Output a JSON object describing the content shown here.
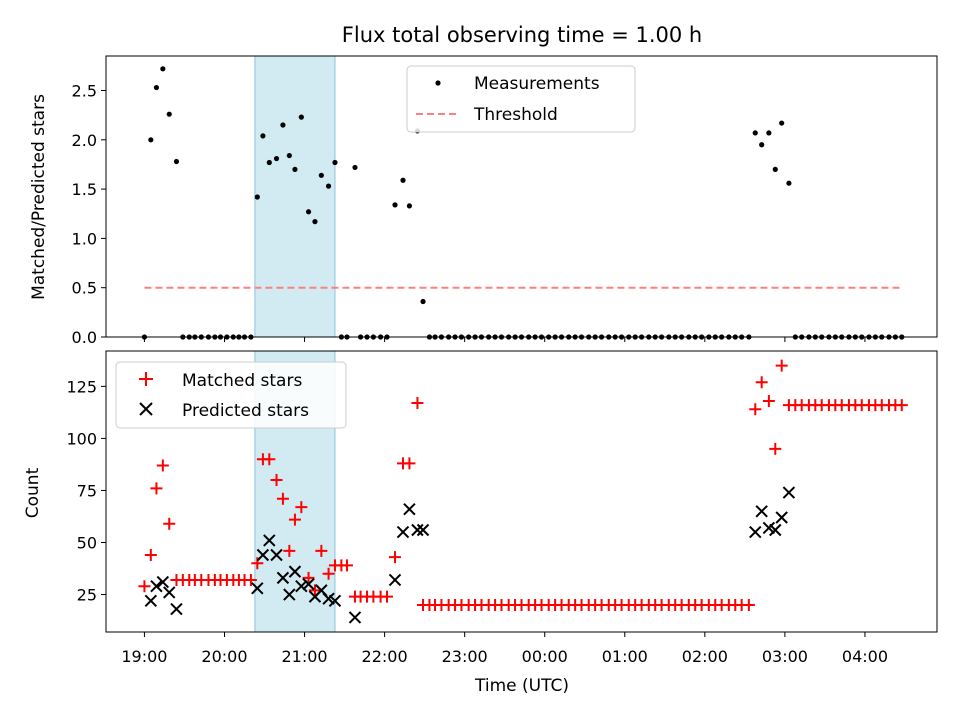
{
  "chart_data": [
    {
      "type": "scatter",
      "title": "Flux total observing time = 1.00 h",
      "ylabel": "Matched/Predicted stars",
      "xlabel": "",
      "x_unit": "hours since 19:00 UTC",
      "ylim": [
        0,
        2.85
      ],
      "xlim": [
        -0.48,
        9.9
      ],
      "yticks": [
        "0.0",
        "0.5",
        "1.0",
        "1.5",
        "2.0",
        "2.5"
      ],
      "ytick_values": [
        0,
        0.5,
        1.0,
        1.5,
        2.0,
        2.5
      ],
      "shaded_interval": [
        1.38,
        2.38
      ],
      "shade_color": "#add8e6",
      "legend_position": "upper center",
      "series": [
        {
          "name": "Measurements",
          "marker": "dot",
          "color": "#000000",
          "x": [
            0,
            0.08,
            0.15,
            0.23,
            0.31,
            0.4,
            0.48,
            0.56,
            0.63,
            0.71,
            0.8,
            0.88,
            0.95,
            1.03,
            1.11,
            1.18,
            1.25,
            1.33,
            1.41,
            1.48,
            1.56,
            1.65,
            1.73,
            1.81,
            1.88,
            1.96,
            2.05,
            2.13,
            2.21,
            2.3,
            2.38,
            2.46,
            2.53,
            2.63,
            2.7,
            2.78,
            2.86,
            2.95,
            3.03,
            3.13,
            3.23,
            3.31,
            3.41,
            3.48,
            3.56,
            3.63,
            3.71,
            3.8,
            3.88,
            3.96,
            4.05,
            4.13,
            4.21,
            4.3,
            4.38,
            4.46,
            4.55,
            4.63,
            4.71,
            4.8,
            4.88,
            4.96,
            5.05,
            5.13,
            5.21,
            5.3,
            5.38,
            5.46,
            5.55,
            5.63,
            5.71,
            5.8,
            5.88,
            5.96,
            6.05,
            6.13,
            6.21,
            6.3,
            6.38,
            6.46,
            6.55,
            6.63,
            6.71,
            6.8,
            6.88,
            6.96,
            7.05,
            7.13,
            7.21,
            7.3,
            7.38,
            7.46,
            7.55,
            7.63,
            7.71,
            7.8,
            7.88,
            7.96,
            8.05,
            8.13,
            8.21,
            8.3,
            8.38,
            8.46,
            8.55,
            8.63,
            8.71,
            8.8,
            8.88,
            8.96,
            9.05,
            9.13,
            9.21,
            9.3,
            9.38,
            9.46
          ],
          "y": [
            0,
            2.0,
            2.53,
            2.72,
            2.26,
            1.78,
            0,
            0,
            0,
            0,
            0,
            0,
            0,
            0,
            0,
            0,
            0,
            0,
            1.42,
            2.04,
            1.77,
            1.81,
            2.15,
            1.84,
            1.7,
            2.23,
            1.27,
            1.17,
            1.64,
            1.53,
            1.77,
            0,
            0,
            1.72,
            0,
            0,
            0,
            0,
            0,
            1.34,
            1.59,
            1.33,
            2.09,
            0.36,
            0,
            0,
            0,
            0,
            0,
            0,
            0,
            0,
            0,
            0,
            0,
            0,
            0,
            0,
            0,
            0,
            0,
            0,
            0,
            0,
            0,
            0,
            0,
            0,
            0,
            0,
            0,
            0,
            0,
            0,
            0,
            0,
            0,
            0,
            0,
            0,
            0,
            0,
            0,
            0,
            0,
            0,
            0,
            0,
            0,
            0,
            0,
            0,
            0,
            2.07,
            1.95,
            2.07,
            1.7,
            2.17,
            1.56,
            0,
            0,
            0,
            0,
            0,
            0,
            0,
            0,
            0,
            0,
            0,
            0,
            0,
            0,
            0,
            0,
            0
          ]
        },
        {
          "name": "Threshold",
          "marker": "dashed-line",
          "color": "#ff7f7f",
          "x": [
            0,
            9.46
          ],
          "y": [
            0.5,
            0.5
          ]
        }
      ]
    },
    {
      "type": "scatter",
      "title": "",
      "ylabel": "Count",
      "xlabel": "Time (UTC)",
      "x_unit": "hours since 19:00 UTC",
      "ylim": [
        7,
        142
      ],
      "xlim": [
        -0.48,
        9.9
      ],
      "yticks": [
        "25",
        "50",
        "75",
        "100",
        "125"
      ],
      "ytick_values": [
        25,
        50,
        75,
        100,
        125
      ],
      "xticks": [
        "19:00",
        "20:00",
        "21:00",
        "22:00",
        "23:00",
        "00:00",
        "01:00",
        "02:00",
        "03:00",
        "04:00"
      ],
      "xtick_values": [
        0,
        1,
        2,
        3,
        4,
        5,
        6,
        7,
        8,
        9
      ],
      "shaded_interval": [
        1.38,
        2.38
      ],
      "shade_color": "#add8e6",
      "legend_position": "upper left",
      "series": [
        {
          "name": "Matched stars",
          "marker": "plus",
          "color": "#ff0000",
          "x": [
            0,
            0.08,
            0.15,
            0.23,
            0.31,
            0.4,
            0.48,
            0.56,
            0.63,
            0.71,
            0.8,
            0.88,
            0.95,
            1.03,
            1.11,
            1.18,
            1.25,
            1.33,
            1.41,
            1.48,
            1.56,
            1.65,
            1.73,
            1.81,
            1.88,
            1.96,
            2.05,
            2.13,
            2.21,
            2.3,
            2.38,
            2.46,
            2.53,
            2.63,
            2.7,
            2.78,
            2.86,
            2.95,
            3.03,
            3.13,
            3.23,
            3.31,
            3.41,
            3.48,
            3.56,
            3.63,
            3.71,
            3.8,
            3.88,
            3.96,
            4.05,
            4.13,
            4.21,
            4.3,
            4.38,
            4.46,
            4.55,
            4.63,
            4.71,
            4.8,
            4.88,
            4.96,
            5.05,
            5.13,
            5.21,
            5.3,
            5.38,
            5.46,
            5.55,
            5.63,
            5.71,
            5.8,
            5.88,
            5.96,
            6.05,
            6.13,
            6.21,
            6.3,
            6.38,
            6.46,
            6.55,
            6.63,
            6.71,
            6.8,
            6.88,
            6.96,
            7.05,
            7.13,
            7.21,
            7.3,
            7.38,
            7.46,
            7.55,
            7.63,
            7.71,
            7.8,
            7.88,
            7.96,
            8.05,
            8.13,
            8.21,
            8.3,
            8.38,
            8.46,
            8.55,
            8.63,
            8.71,
            8.8,
            8.88,
            8.96,
            9.05,
            9.13,
            9.21,
            9.3,
            9.38,
            9.46
          ],
          "y": [
            29,
            44,
            76,
            87,
            59,
            32,
            32,
            32,
            32,
            32,
            32,
            32,
            32,
            32,
            32,
            32,
            32,
            32,
            40,
            90,
            90,
            80,
            71,
            46,
            61,
            67,
            33,
            27,
            46,
            35,
            39,
            39,
            39,
            24,
            24,
            24,
            24,
            24,
            24,
            43,
            88,
            88,
            117,
            20,
            20,
            20,
            20,
            20,
            20,
            20,
            20,
            20,
            20,
            20,
            20,
            20,
            20,
            20,
            20,
            20,
            20,
            20,
            20,
            20,
            20,
            20,
            20,
            20,
            20,
            20,
            20,
            20,
            20,
            20,
            20,
            20,
            20,
            20,
            20,
            20,
            20,
            20,
            20,
            20,
            20,
            20,
            20,
            20,
            20,
            20,
            20,
            20,
            20,
            114,
            127,
            118,
            95,
            135,
            116,
            116,
            116,
            116,
            116,
            116,
            116,
            116,
            116,
            116,
            116,
            116,
            116,
            116,
            116,
            116,
            116,
            116
          ]
        },
        {
          "name": "Predicted stars",
          "marker": "x",
          "color": "#000000",
          "x": [
            0.08,
            0.15,
            0.23,
            0.31,
            0.4,
            1.41,
            1.48,
            1.56,
            1.65,
            1.73,
            1.81,
            1.88,
            1.96,
            2.05,
            2.13,
            2.21,
            2.3,
            2.38,
            2.63,
            3.13,
            3.23,
            3.31,
            3.41,
            3.48,
            7.63,
            7.71,
            7.8,
            7.88,
            7.96,
            8.05
          ],
          "y": [
            22,
            29,
            31,
            26,
            18,
            28,
            44,
            51,
            44,
            33,
            25,
            36,
            29,
            30,
            24,
            27,
            23,
            22,
            14,
            32,
            55,
            66,
            56,
            56,
            55,
            65,
            57,
            56,
            62,
            74
          ]
        }
      ]
    }
  ]
}
